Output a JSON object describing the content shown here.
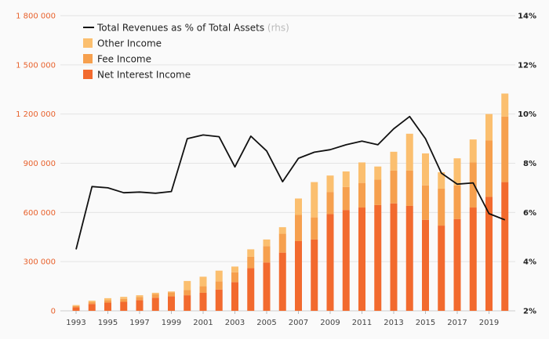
{
  "chart_data": {
    "type": "bar",
    "x": [
      1993,
      1994,
      1995,
      1996,
      1997,
      1998,
      1999,
      2000,
      2001,
      2002,
      2003,
      2004,
      2005,
      2006,
      2007,
      2008,
      2009,
      2010,
      2011,
      2012,
      2013,
      2014,
      2015,
      2016,
      2017,
      2018,
      2019,
      2020
    ],
    "series": [
      {
        "name": "Net Interest Income",
        "color": "#f26a2e",
        "values": [
          22000,
          42000,
          50000,
          55000,
          65000,
          80000,
          88000,
          95000,
          110000,
          130000,
          175000,
          260000,
          295000,
          355000,
          425000,
          435000,
          590000,
          615000,
          630000,
          645000,
          655000,
          640000,
          555000,
          520000,
          560000,
          630000,
          695000,
          785000
        ]
      },
      {
        "name": "Fee Income",
        "color": "#f6a04e",
        "values": [
          8000,
          12000,
          15000,
          18000,
          20000,
          22000,
          25000,
          32000,
          40000,
          50000,
          60000,
          70000,
          100000,
          115000,
          160000,
          135000,
          135000,
          140000,
          150000,
          155000,
          200000,
          215000,
          210000,
          225000,
          205000,
          275000,
          345000,
          400000
        ]
      },
      {
        "name": "Other Income",
        "color": "#fbbf6f",
        "values": [
          5000,
          8000,
          12000,
          12000,
          10000,
          8000,
          5000,
          55000,
          58000,
          65000,
          35000,
          45000,
          40000,
          40000,
          100000,
          215000,
          100000,
          95000,
          125000,
          80000,
          115000,
          225000,
          195000,
          100000,
          165000,
          140000,
          160000,
          140000
        ]
      },
      {
        "name": "Total Revenues as % of Total Assets",
        "axis": "rhs",
        "type": "line",
        "color": "#111111",
        "values": [
          4.5,
          7.05,
          7.0,
          6.8,
          6.83,
          6.78,
          6.85,
          9.0,
          9.15,
          9.08,
          7.85,
          9.1,
          8.5,
          7.25,
          8.2,
          8.45,
          8.55,
          8.75,
          8.9,
          8.75,
          9.4,
          9.9,
          9.0,
          7.6,
          7.15,
          7.2,
          5.95,
          5.7
        ]
      }
    ],
    "y_left": {
      "ylim": [
        0,
        1800000
      ],
      "ticks": [
        "0",
        "300 000",
        "600 000",
        "900 000",
        "1 200 000",
        "1 500 000",
        "1 800 000"
      ],
      "values": [
        0,
        300000,
        600000,
        900000,
        1200000,
        1500000,
        1800000
      ]
    },
    "y_right": {
      "ylim": [
        2,
        14
      ],
      "ticks": [
        "2%",
        "4%",
        "6%",
        "8%",
        "10%",
        "12%",
        "14%"
      ],
      "values": [
        2,
        4,
        6,
        8,
        10,
        12,
        14
      ]
    },
    "x_ticks": [
      "1993",
      "1995",
      "1997",
      "1999",
      "2001",
      "2003",
      "2005",
      "2007",
      "2009",
      "2011",
      "2013",
      "2015",
      "2017",
      "2019"
    ],
    "legend": {
      "line_label": "Total Revenues as % of Total Assets",
      "line_note": "(rhs)",
      "items": [
        "Other Income",
        "Fee Income",
        "Net Interest Income"
      ]
    },
    "grid": true,
    "legend_placement": "top-left"
  }
}
